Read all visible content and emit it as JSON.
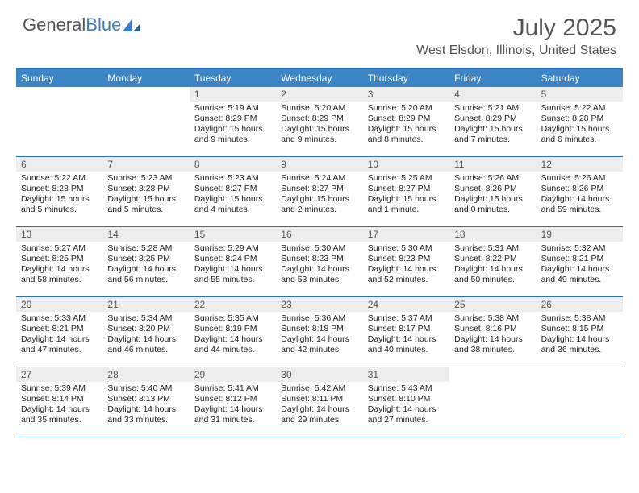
{
  "brand": {
    "part1": "General",
    "part2": "Blue"
  },
  "title": {
    "month": "July 2025",
    "location": "West Elsdon, Illinois, United States"
  },
  "colors": {
    "header_bg": "#3b85c7",
    "rule": "#2f6fb0",
    "daynum_bg": "#ededed",
    "text": "#222222",
    "muted": "#555555",
    "brand_blue": "#3b7fc4"
  },
  "day_labels": [
    "Sunday",
    "Monday",
    "Tuesday",
    "Wednesday",
    "Thursday",
    "Friday",
    "Saturday"
  ],
  "first_weekday_index": 2,
  "days": [
    {
      "n": 1,
      "sr": "5:19 AM",
      "ss": "8:29 PM",
      "dl": "15 hours and 9 minutes."
    },
    {
      "n": 2,
      "sr": "5:20 AM",
      "ss": "8:29 PM",
      "dl": "15 hours and 9 minutes."
    },
    {
      "n": 3,
      "sr": "5:20 AM",
      "ss": "8:29 PM",
      "dl": "15 hours and 8 minutes."
    },
    {
      "n": 4,
      "sr": "5:21 AM",
      "ss": "8:29 PM",
      "dl": "15 hours and 7 minutes."
    },
    {
      "n": 5,
      "sr": "5:22 AM",
      "ss": "8:28 PM",
      "dl": "15 hours and 6 minutes."
    },
    {
      "n": 6,
      "sr": "5:22 AM",
      "ss": "8:28 PM",
      "dl": "15 hours and 5 minutes."
    },
    {
      "n": 7,
      "sr": "5:23 AM",
      "ss": "8:28 PM",
      "dl": "15 hours and 5 minutes."
    },
    {
      "n": 8,
      "sr": "5:23 AM",
      "ss": "8:27 PM",
      "dl": "15 hours and 4 minutes."
    },
    {
      "n": 9,
      "sr": "5:24 AM",
      "ss": "8:27 PM",
      "dl": "15 hours and 2 minutes."
    },
    {
      "n": 10,
      "sr": "5:25 AM",
      "ss": "8:27 PM",
      "dl": "15 hours and 1 minute."
    },
    {
      "n": 11,
      "sr": "5:26 AM",
      "ss": "8:26 PM",
      "dl": "15 hours and 0 minutes."
    },
    {
      "n": 12,
      "sr": "5:26 AM",
      "ss": "8:26 PM",
      "dl": "14 hours and 59 minutes."
    },
    {
      "n": 13,
      "sr": "5:27 AM",
      "ss": "8:25 PM",
      "dl": "14 hours and 58 minutes."
    },
    {
      "n": 14,
      "sr": "5:28 AM",
      "ss": "8:25 PM",
      "dl": "14 hours and 56 minutes."
    },
    {
      "n": 15,
      "sr": "5:29 AM",
      "ss": "8:24 PM",
      "dl": "14 hours and 55 minutes."
    },
    {
      "n": 16,
      "sr": "5:30 AM",
      "ss": "8:23 PM",
      "dl": "14 hours and 53 minutes."
    },
    {
      "n": 17,
      "sr": "5:30 AM",
      "ss": "8:23 PM",
      "dl": "14 hours and 52 minutes."
    },
    {
      "n": 18,
      "sr": "5:31 AM",
      "ss": "8:22 PM",
      "dl": "14 hours and 50 minutes."
    },
    {
      "n": 19,
      "sr": "5:32 AM",
      "ss": "8:21 PM",
      "dl": "14 hours and 49 minutes."
    },
    {
      "n": 20,
      "sr": "5:33 AM",
      "ss": "8:21 PM",
      "dl": "14 hours and 47 minutes."
    },
    {
      "n": 21,
      "sr": "5:34 AM",
      "ss": "8:20 PM",
      "dl": "14 hours and 46 minutes."
    },
    {
      "n": 22,
      "sr": "5:35 AM",
      "ss": "8:19 PM",
      "dl": "14 hours and 44 minutes."
    },
    {
      "n": 23,
      "sr": "5:36 AM",
      "ss": "8:18 PM",
      "dl": "14 hours and 42 minutes."
    },
    {
      "n": 24,
      "sr": "5:37 AM",
      "ss": "8:17 PM",
      "dl": "14 hours and 40 minutes."
    },
    {
      "n": 25,
      "sr": "5:38 AM",
      "ss": "8:16 PM",
      "dl": "14 hours and 38 minutes."
    },
    {
      "n": 26,
      "sr": "5:38 AM",
      "ss": "8:15 PM",
      "dl": "14 hours and 36 minutes."
    },
    {
      "n": 27,
      "sr": "5:39 AM",
      "ss": "8:14 PM",
      "dl": "14 hours and 35 minutes."
    },
    {
      "n": 28,
      "sr": "5:40 AM",
      "ss": "8:13 PM",
      "dl": "14 hours and 33 minutes."
    },
    {
      "n": 29,
      "sr": "5:41 AM",
      "ss": "8:12 PM",
      "dl": "14 hours and 31 minutes."
    },
    {
      "n": 30,
      "sr": "5:42 AM",
      "ss": "8:11 PM",
      "dl": "14 hours and 29 minutes."
    },
    {
      "n": 31,
      "sr": "5:43 AM",
      "ss": "8:10 PM",
      "dl": "14 hours and 27 minutes."
    }
  ],
  "labels": {
    "sunrise": "Sunrise:",
    "sunset": "Sunset:",
    "daylight": "Daylight:"
  }
}
